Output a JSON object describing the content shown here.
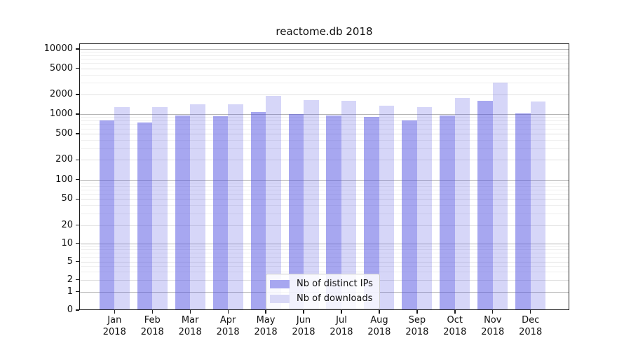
{
  "title": "reactome.db 2018",
  "chart_data": {
    "type": "bar",
    "title": "reactome.db 2018",
    "y_scale": "symlog",
    "grid": true,
    "ylim": [
      0,
      14000
    ],
    "y_ticks": [
      0,
      1,
      2,
      5,
      10,
      20,
      50,
      100,
      200,
      500,
      1000,
      2000,
      5000,
      10000
    ],
    "categories": [
      "Jan",
      "Feb",
      "Mar",
      "Apr",
      "May",
      "Jun",
      "Jul",
      "Aug",
      "Sep",
      "Oct",
      "Nov",
      "Dec"
    ],
    "year_label": "2018",
    "series": [
      {
        "name": "Nb of distinct IPs",
        "color": "#a7a7f0",
        "color_rgba": "rgba(79,79,225,0.50)",
        "values": [
          800,
          740,
          940,
          930,
          1090,
          1000,
          960,
          910,
          800,
          940,
          1620,
          1020
        ]
      },
      {
        "name": "Nb of downloads",
        "color": "#d8d8f6",
        "color_rgba": "rgba(79,79,225,0.23)",
        "values": [
          1270,
          1270,
          1400,
          1430,
          1900,
          1650,
          1600,
          1350,
          1280,
          1750,
          3000,
          1550
        ]
      }
    ],
    "legend": {
      "position": "lower-center",
      "labels": [
        "Nb of distinct IPs",
        "Nb of downloads"
      ]
    },
    "colors": {
      "grid_major": "#b5b5b5",
      "grid_mid": "#e0e0e0",
      "grid_minor": "#efefef",
      "axis": "#1a1a1a"
    }
  }
}
